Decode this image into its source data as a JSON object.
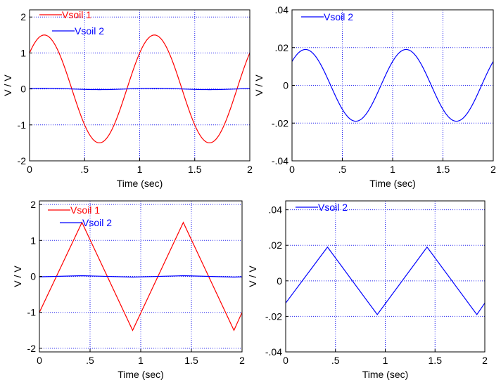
{
  "chart_data": [
    {
      "type": "line",
      "xlabel": "Time (sec)",
      "ylabel": "V / V",
      "xlim": [
        0,
        2
      ],
      "ylim": [
        -2,
        2.2
      ],
      "xticks": [
        0,
        0.5,
        1,
        1.5,
        2
      ],
      "xtick_labels": [
        "0",
        ".5",
        "1",
        "1.5",
        "2"
      ],
      "yticks": [
        -2,
        -1,
        0,
        1,
        2
      ],
      "ytick_labels": [
        "-2",
        "-1",
        "0",
        "1",
        "2"
      ],
      "grid": true,
      "legend_position": "top-left",
      "series": [
        {
          "name": "Vsoil 1",
          "color": "#ff0000",
          "shape": "sine",
          "amplitude": 1.5,
          "period": 1,
          "phase_deg": 41.8
        },
        {
          "name": "Vsoil 2",
          "color": "#0000ff",
          "shape": "sine",
          "amplitude": 0.019,
          "period": 1,
          "phase_deg": 41.8
        }
      ]
    },
    {
      "type": "line",
      "xlabel": "Time (sec)",
      "ylabel": "V / V",
      "xlim": [
        0,
        2
      ],
      "ylim": [
        -0.04,
        0.04
      ],
      "xticks": [
        0,
        0.5,
        1,
        1.5,
        2
      ],
      "xtick_labels": [
        "0",
        ".5",
        "1",
        "1.5",
        "2"
      ],
      "yticks": [
        -0.04,
        -0.02,
        0,
        0.02,
        0.04
      ],
      "ytick_labels": [
        "-.04",
        "-.02",
        "0",
        ".02",
        ".04"
      ],
      "grid": true,
      "legend_position": "top-left",
      "series": [
        {
          "name": "Vsoil 2",
          "color": "#0000ff",
          "shape": "sine",
          "amplitude": 0.019,
          "period": 1,
          "phase_deg": 41.8
        }
      ]
    },
    {
      "type": "line",
      "xlabel": "Time (sec)",
      "ylabel": "V / V",
      "xlim": [
        0,
        2
      ],
      "ylim": [
        -2.1,
        2.1
      ],
      "xticks": [
        0,
        0.5,
        1,
        1.5,
        2
      ],
      "xtick_labels": [
        "0",
        ".5",
        "1",
        "1.5",
        "2"
      ],
      "yticks": [
        -2,
        -1,
        0,
        1,
        2
      ],
      "ytick_labels": [
        "-2",
        "-1",
        "0",
        "1",
        "2"
      ],
      "grid": true,
      "legend_position": "top-left",
      "series": [
        {
          "name": "Vsoil 1",
          "color": "#ff0000",
          "shape": "triangle",
          "x": [
            0,
            0.42,
            0.92,
            1.42,
            1.92,
            2.0
          ],
          "y": [
            -1.0,
            1.5,
            -1.5,
            1.5,
            -1.5,
            -1.0
          ]
        },
        {
          "name": "Vsoil 2",
          "color": "#0000ff",
          "shape": "triangle",
          "x": [
            0,
            0.42,
            0.92,
            1.42,
            1.92,
            2.0
          ],
          "y": [
            -0.0125,
            0.019,
            -0.019,
            0.019,
            -0.019,
            -0.0125
          ]
        }
      ]
    },
    {
      "type": "line",
      "xlabel": "Time (sec)",
      "ylabel": "V / V",
      "xlim": [
        0,
        2
      ],
      "ylim": [
        -0.04,
        0.045
      ],
      "xticks": [
        0,
        0.5,
        1,
        1.5,
        2
      ],
      "xtick_labels": [
        "0",
        ".5",
        "1",
        "1.5",
        "2"
      ],
      "yticks": [
        -0.04,
        -0.02,
        0,
        0.02,
        0.04
      ],
      "ytick_labels": [
        "-.04",
        "-.02",
        "0",
        ".02",
        ".04"
      ],
      "grid": true,
      "legend_position": "top-left",
      "series": [
        {
          "name": "Vsoil 2",
          "color": "#0000ff",
          "shape": "triangle",
          "x": [
            0,
            0.42,
            0.92,
            1.42,
            1.92,
            2.0
          ],
          "y": [
            -0.0125,
            0.019,
            -0.019,
            0.019,
            -0.019,
            -0.0125
          ]
        }
      ]
    }
  ]
}
